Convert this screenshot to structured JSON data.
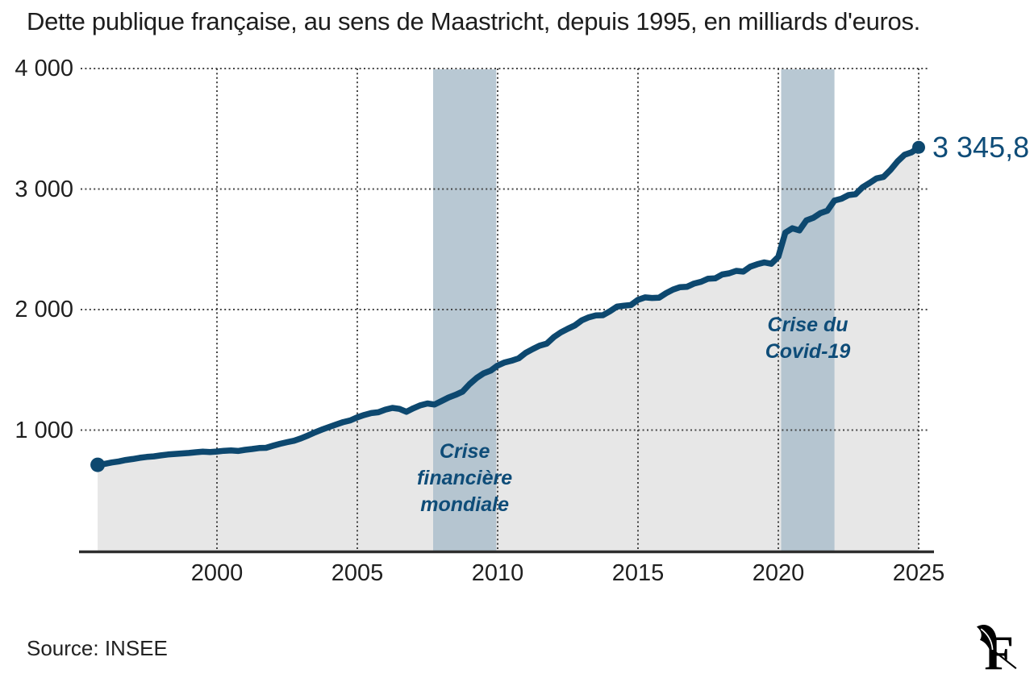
{
  "header": {
    "title": "Dette publique française, au sens de Maastricht, depuis 1995, en milliards d'euros."
  },
  "footer": {
    "source": "Source: INSEE",
    "logo": "le-figaro-logo"
  },
  "colors": {
    "line": "#0d486f",
    "area_fill": "#e7e7e7",
    "band": "rgba(172,190,203,0.85)",
    "grid": "#454545",
    "axis": "#2e2e2e",
    "text": "#1f1f1f",
    "annotation_text": "#0e4c78"
  },
  "chart_data": {
    "type": "area",
    "title": "Dette publique française, au sens de Maastricht, depuis 1995, en milliards d'euros.",
    "unit": "milliards d'euros",
    "frequency": "quarterly",
    "x_start": 1995.75,
    "x_step": 0.25,
    "values": [
      712,
      720,
      731,
      740,
      752,
      760,
      770,
      777,
      782,
      790,
      797,
      802,
      806,
      810,
      816,
      821,
      818,
      822,
      828,
      831,
      827,
      836,
      843,
      851,
      853,
      870,
      886,
      900,
      912,
      932,
      956,
      982,
      1005,
      1026,
      1046,
      1066,
      1080,
      1106,
      1126,
      1141,
      1148,
      1170,
      1184,
      1176,
      1152,
      1181,
      1206,
      1221,
      1212,
      1241,
      1270,
      1292,
      1319,
      1381,
      1432,
      1471,
      1493,
      1536,
      1561,
      1576,
      1595,
      1641,
      1672,
      1701,
      1717,
      1771,
      1811,
      1841,
      1868,
      1911,
      1936,
      1951,
      1953,
      1986,
      2024,
      2032,
      2038,
      2081,
      2101,
      2096,
      2098,
      2136,
      2166,
      2186,
      2189,
      2216,
      2231,
      2256,
      2259,
      2291,
      2301,
      2321,
      2315,
      2356,
      2376,
      2391,
      2380,
      2438,
      2638,
      2674,
      2657,
      2740,
      2762,
      2800,
      2821,
      2905,
      2920,
      2950,
      2957,
      3015,
      3050,
      3088,
      3101,
      3160,
      3230,
      3285,
      3305,
      3345.8
    ],
    "last_point_value": 3345.8,
    "last_point_label": "3 345,8",
    "x_ticks": [
      {
        "value": 2000,
        "label": "2000"
      },
      {
        "value": 2005,
        "label": "2005"
      },
      {
        "value": 2010,
        "label": "2010"
      },
      {
        "value": 2015,
        "label": "2015"
      },
      {
        "value": 2020,
        "label": "2020"
      },
      {
        "value": 2025,
        "label": "2025"
      }
    ],
    "y_ticks": [
      {
        "value": 1000,
        "label": "1 000"
      },
      {
        "value": 2000,
        "label": "2 000"
      },
      {
        "value": 3000,
        "label": "3 000"
      },
      {
        "value": 4000,
        "label": "4 000"
      }
    ],
    "xlim": [
      1995.6,
      2025.4
    ],
    "ylim": [
      0,
      4000
    ],
    "grid": "dotted",
    "annotations": [
      {
        "lines": [
          "Crise",
          "financière",
          "mondiale"
        ],
        "band": [
          2007.7,
          2009.95
        ],
        "label_center_value": 600
      },
      {
        "lines": [
          "Crise du",
          "Covid-19"
        ],
        "band": [
          2020.1,
          2022.0
        ],
        "label_center_value": 1760
      }
    ]
  }
}
